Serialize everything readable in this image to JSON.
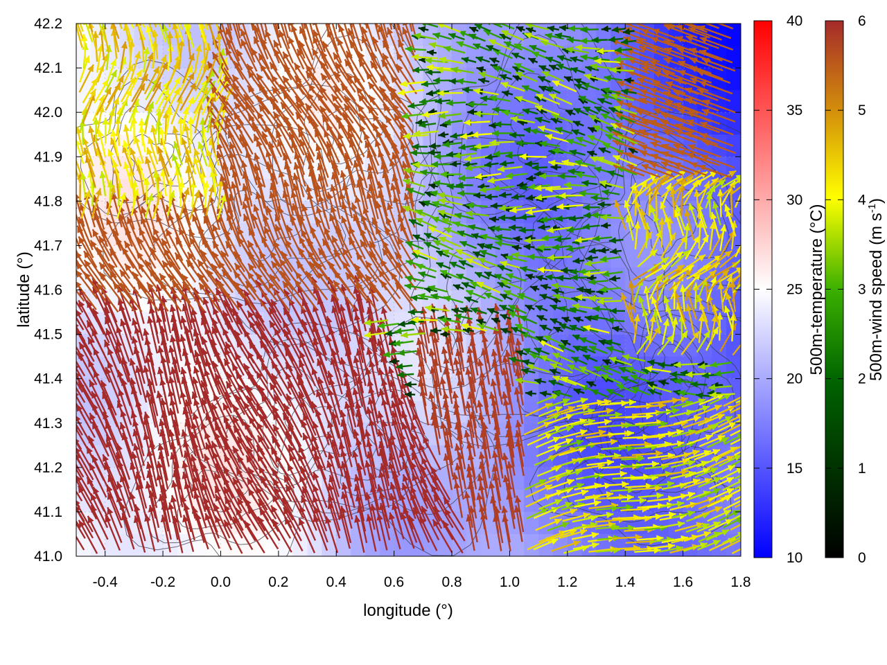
{
  "chart_data": {
    "type": "heatmap",
    "subtype": "temperature map with wind-vector arrows and contour lines",
    "xlabel": "longitude (°)",
    "ylabel": "latitude (°)",
    "xlim": [
      -0.5,
      1.8
    ],
    "ylim": [
      41.0,
      42.2
    ],
    "x_ticks": [
      "-0.4",
      "-0.2",
      "0.0",
      "0.2",
      "0.4",
      "0.6",
      "0.8",
      "1.0",
      "1.2",
      "1.4",
      "1.6",
      "1.8"
    ],
    "y_ticks": [
      "42.2",
      "42.1",
      "42.0",
      "41.9",
      "41.8",
      "41.7",
      "41.6",
      "41.5",
      "41.4",
      "41.3",
      "41.2",
      "41.1",
      "41.0"
    ],
    "grid": true,
    "colorbars": [
      {
        "label": "500m-temperature (°C)",
        "range": [
          10,
          40
        ],
        "ticks": [
          "40",
          "35",
          "30",
          "25",
          "20",
          "15",
          "10"
        ],
        "colors": [
          "#0000ff",
          "#ffffff",
          "#ff0000"
        ]
      },
      {
        "label_main": "500m-wind speed (m s",
        "label_sup": "-1",
        "label_end": ")",
        "range": [
          0,
          6
        ],
        "ticks": [
          "6",
          "5",
          "4",
          "3",
          "2",
          "1",
          "0"
        ],
        "colors": [
          "#000000",
          "#006400",
          "#3cb000",
          "#ffff00",
          "#d4900a",
          "#a52a2a"
        ]
      }
    ],
    "temperature_field_regions": [
      {
        "region": "west (lon -0.5 to 0.4)",
        "temp_c": 24
      },
      {
        "region": "center (lon 0.4 to 1.0)",
        "temp_c": 19
      },
      {
        "region": "east (lon 1.0 to 1.8)",
        "temp_c": 15
      },
      {
        "region": "northeast corner",
        "temp_c": 12
      }
    ],
    "wind_regions": [
      {
        "region": "west lowlands",
        "direction": "north-northwest flow",
        "speed_ms": 6
      },
      {
        "region": "northwest corner",
        "direction": "northward flow",
        "speed_ms": 4
      },
      {
        "region": "northeast",
        "direction": "westward flow",
        "speed_ms": 2
      },
      {
        "region": "central band",
        "direction": "westward flow",
        "speed_ms": 3
      },
      {
        "region": "southeast",
        "direction": "east-northeast flow",
        "speed_ms": 3.5
      }
    ]
  }
}
